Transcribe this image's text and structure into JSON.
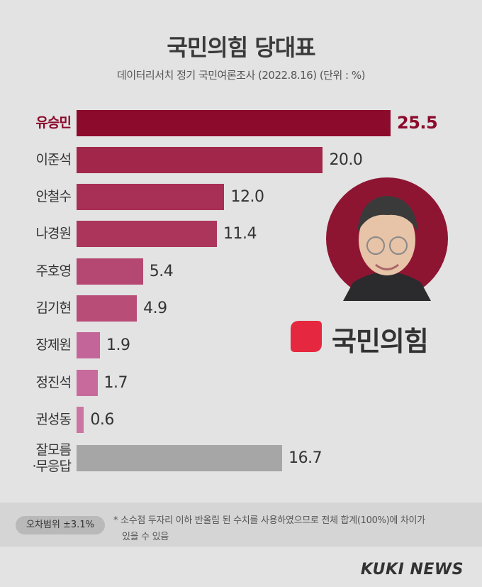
{
  "chart_data": {
    "type": "bar",
    "orientation": "horizontal",
    "title": "국민의힘 당대표",
    "subtitle": "데이터리서치 정기 국민여론조사 (2022.8.16)  (단위 : %)",
    "categories": [
      "유승민",
      "이준석",
      "안철수",
      "나경원",
      "주호영",
      "김기현",
      "장제원",
      "정진석",
      "권성동",
      "잘모름\n·무응답"
    ],
    "values": [
      25.5,
      20.0,
      12.0,
      11.4,
      5.4,
      4.9,
      1.9,
      1.7,
      0.6,
      16.7
    ],
    "value_labels": [
      "25.5",
      "20.0",
      "12.0",
      "11.4",
      "5.4",
      "4.9",
      "1.9",
      "1.7",
      "0.6",
      "16.7"
    ],
    "colors": [
      "#8c0a2b",
      "#a2264a",
      "#a82f55",
      "#ac355b",
      "#b54873",
      "#b84d77",
      "#c4659a",
      "#c86b9c",
      "#cb75a2",
      "#a6a6a6"
    ]
  },
  "logo_text": "국민의힘",
  "margin_of_error": "오차범위 ±3.1%",
  "note": [
    "* 소수점 두자리 이하 반올림 된 수치를 사용하였으므로 전체 합계(100%)에 차이가",
    "있을 수 있음"
  ],
  "brand": "KUKI NEWS"
}
